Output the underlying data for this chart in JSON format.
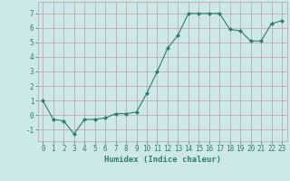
{
  "x": [
    0,
    1,
    2,
    3,
    4,
    5,
    6,
    7,
    8,
    9,
    10,
    11,
    12,
    13,
    14,
    15,
    16,
    17,
    18,
    19,
    20,
    21,
    22,
    23
  ],
  "y": [
    1.0,
    -0.3,
    -0.4,
    -1.3,
    -0.3,
    -0.3,
    -0.2,
    0.1,
    0.1,
    0.2,
    1.5,
    3.0,
    4.6,
    5.5,
    7.0,
    7.0,
    7.0,
    7.0,
    5.9,
    5.8,
    5.1,
    5.1,
    6.3,
    6.5
  ],
  "line_color": "#2e7d6e",
  "marker": "D",
  "marker_size": 2.0,
  "bg_color": "#cce8e8",
  "grid_color": "#c0a0a0",
  "xlabel": "Humidex (Indice chaleur)",
  "xlabel_color": "#2e7d6e",
  "xlabel_fontsize": 6.5,
  "tick_color": "#2e7d6e",
  "tick_fontsize": 5.5,
  "ylim": [
    -1.8,
    7.8
  ],
  "xlim": [
    -0.5,
    23.5
  ],
  "yticks": [
    -1,
    0,
    1,
    2,
    3,
    4,
    5,
    6,
    7
  ],
  "xticks": [
    0,
    1,
    2,
    3,
    4,
    5,
    6,
    7,
    8,
    9,
    10,
    11,
    12,
    13,
    14,
    15,
    16,
    17,
    18,
    19,
    20,
    21,
    22,
    23
  ]
}
